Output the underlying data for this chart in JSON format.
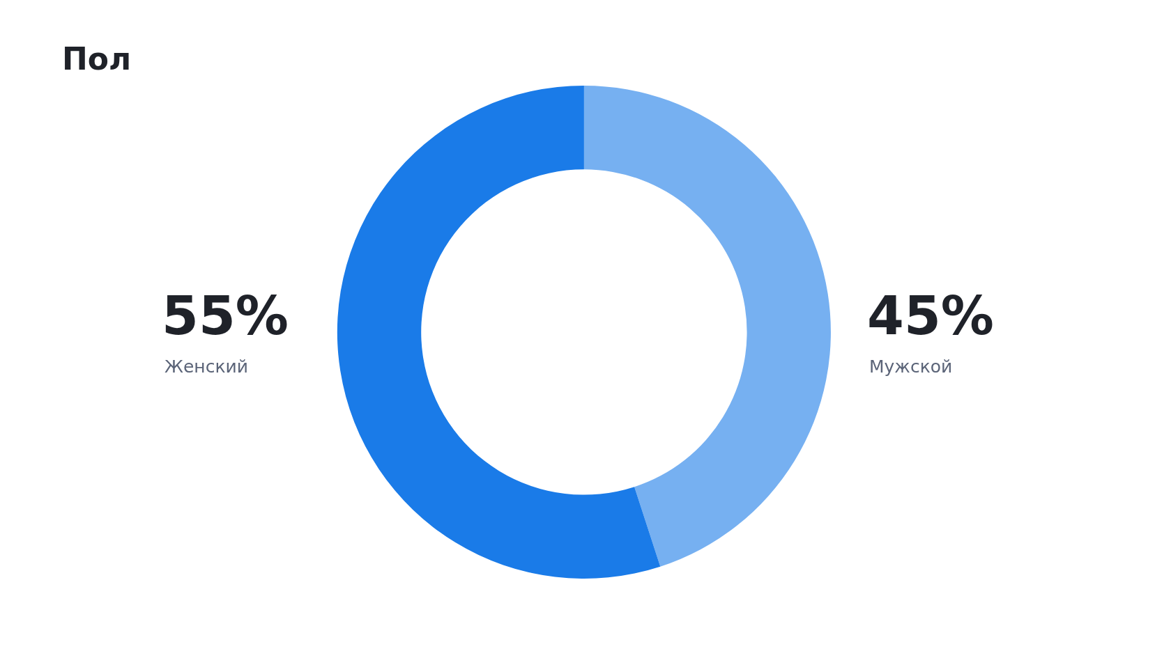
{
  "chart_data": {
    "type": "donut",
    "title": "Пол",
    "categories": [
      "Мужской",
      "Женский"
    ],
    "values": [
      45,
      55
    ],
    "value_labels": [
      "45%",
      "55%"
    ],
    "colors": [
      "#76b0f1",
      "#1a7be8"
    ],
    "legend": false
  }
}
